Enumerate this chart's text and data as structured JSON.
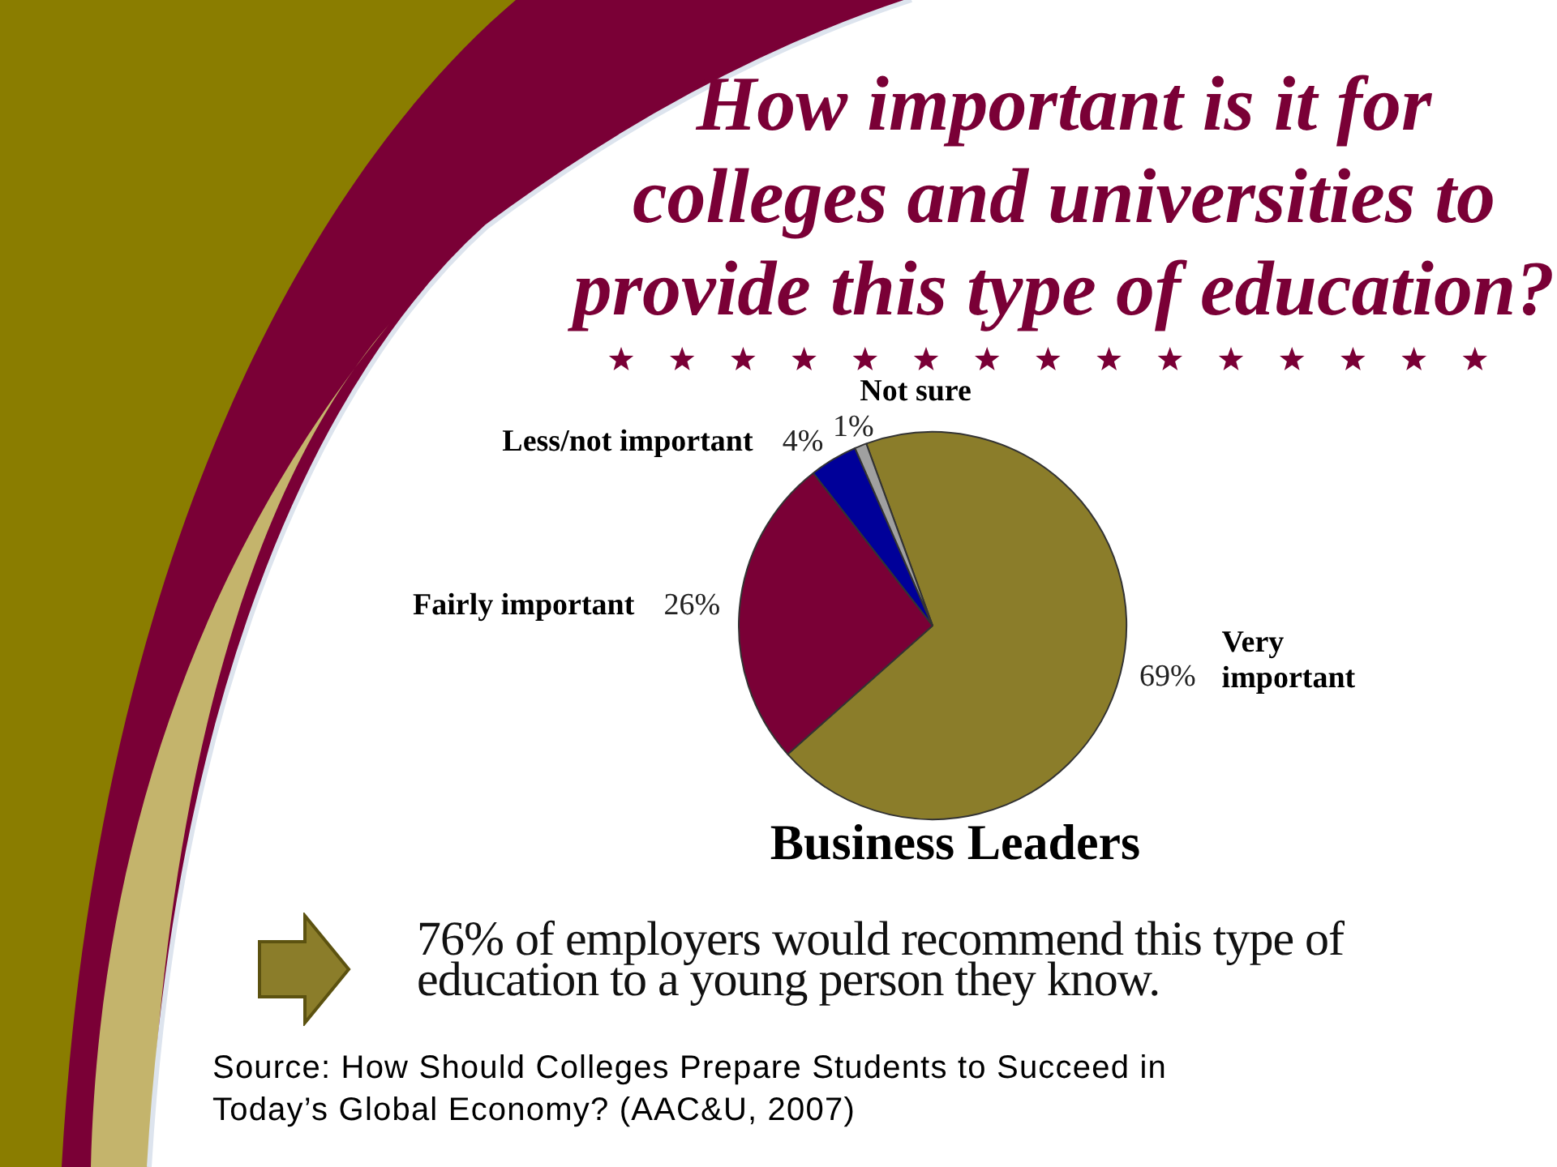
{
  "chart_data": {
    "type": "pie",
    "title": "How important is it for colleges and universities to provide this type of education?",
    "subtitle": "Business Leaders",
    "categories": [
      "Very important",
      "Fairly important",
      "Less/not important",
      "Not sure"
    ],
    "values": [
      69,
      26,
      4,
      1
    ],
    "colors": [
      "#8b7d2a",
      "#7a0036",
      "#000099",
      "#a0a0a0"
    ],
    "value_labels": [
      "69%",
      "26%",
      "4%",
      "1%"
    ],
    "annotations": [
      "76% of employers would recommend this type of education to a young person they know.",
      "Source: How Should Colleges Prepare Students to Succeed in Today’s Global Economy? (AAC&U, 2007)"
    ]
  }
}
